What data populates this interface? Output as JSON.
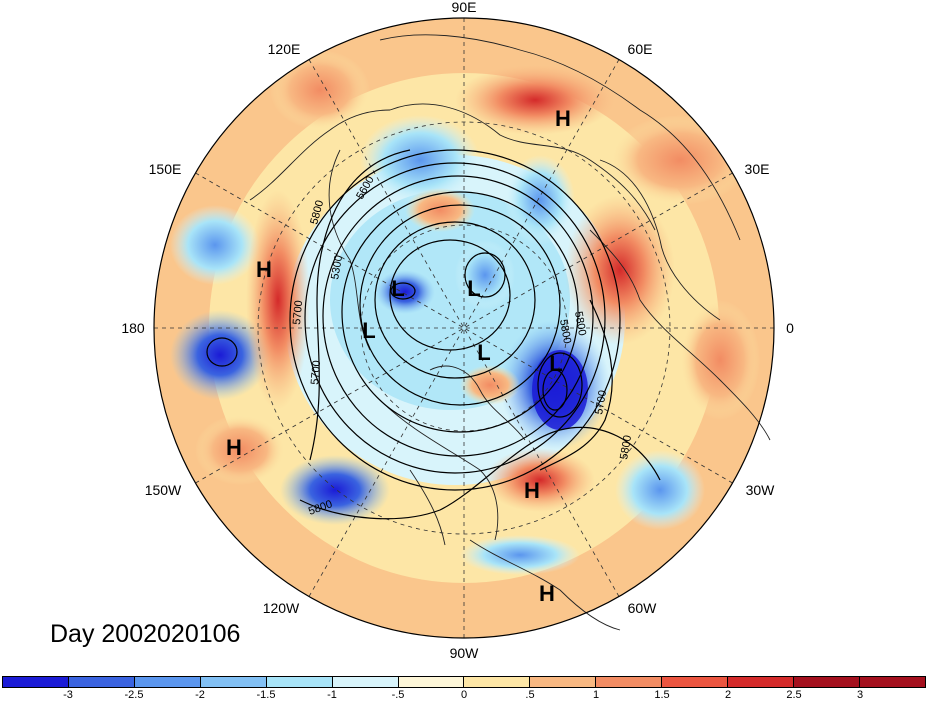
{
  "title": "Day 2002020106",
  "longitude_labels": [
    "90E",
    "60E",
    "30E",
    "0",
    "30W",
    "60W",
    "90W",
    "120W",
    "150W",
    "180",
    "150E",
    "120E"
  ],
  "highs_lows": [
    "H",
    "H",
    "H",
    "H",
    "H",
    "L",
    "L",
    "L",
    "L",
    "L"
  ],
  "contour_labels": [
    "5600",
    "5300",
    "5800",
    "5700",
    "5700",
    "5800",
    "5700",
    "5800",
    "5800",
    "5800"
  ],
  "colorbar": {
    "colors": [
      "#1b1bd6",
      "#3a63e0",
      "#5b96ee",
      "#82c0f4",
      "#a8e4f8",
      "#d8f4fb",
      "#fdf6d8",
      "#fde6a6",
      "#f8b882",
      "#f28c63",
      "#eb5540",
      "#d42a2a",
      "#a4101e"
    ],
    "labels": [
      "-3",
      "-2.5",
      "-2",
      "-1.5",
      "-1",
      "-.5",
      "0",
      ".5",
      "1",
      "1.5",
      "2",
      "2.5",
      "3"
    ]
  }
}
